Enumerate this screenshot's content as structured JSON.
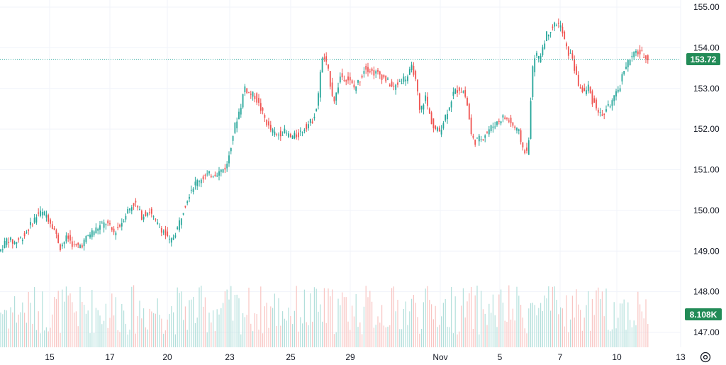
{
  "colors": {
    "up": "#26a69a",
    "down": "#ef5350",
    "up_volume": "#b2dfdb",
    "down_volume": "#f8c4c2",
    "grid": "#f0f3fa",
    "price_line": "#26a69a",
    "tag_bg": "#228b57"
  },
  "price_tag": "153.72",
  "volume_tag": "8.108K",
  "settings_icon": "gear-icon",
  "chart_data": {
    "type": "candlestick",
    "y_ticks": [
      "155.00",
      "154.00",
      "153.00",
      "152.00",
      "151.00",
      "150.00",
      "149.00",
      "148.00",
      "147.00"
    ],
    "ylim": [
      146.8,
      155.2
    ],
    "x_ticks": [
      "15",
      "17",
      "20",
      "23",
      "25",
      "29",
      "Nov",
      "5",
      "7",
      "10",
      "13"
    ],
    "last_price": 153.72,
    "last_volume": "8.108K",
    "grid": true,
    "price_path": [
      [
        0,
        149.0
      ],
      [
        10,
        149.3
      ],
      [
        20,
        149.2
      ],
      [
        35,
        149.4
      ],
      [
        45,
        149.7
      ],
      [
        55,
        149.95
      ],
      [
        65,
        149.9
      ],
      [
        75,
        149.6
      ],
      [
        85,
        149.1
      ],
      [
        95,
        149.35
      ],
      [
        105,
        149.1
      ],
      [
        115,
        149.15
      ],
      [
        125,
        149.4
      ],
      [
        140,
        149.6
      ],
      [
        150,
        149.7
      ],
      [
        160,
        149.45
      ],
      [
        170,
        149.65
      ],
      [
        180,
        150.0
      ],
      [
        190,
        150.2
      ],
      [
        200,
        149.85
      ],
      [
        210,
        150.0
      ],
      [
        220,
        149.7
      ],
      [
        230,
        149.5
      ],
      [
        240,
        149.2
      ],
      [
        250,
        149.55
      ],
      [
        260,
        150.1
      ],
      [
        270,
        150.55
      ],
      [
        280,
        150.75
      ],
      [
        290,
        150.85
      ],
      [
        300,
        150.9
      ],
      [
        310,
        150.95
      ],
      [
        320,
        151.1
      ],
      [
        330,
        152.0
      ],
      [
        340,
        152.6
      ],
      [
        345,
        153.05
      ],
      [
        350,
        152.9
      ],
      [
        360,
        152.8
      ],
      [
        370,
        152.4
      ],
      [
        380,
        152.0
      ],
      [
        390,
        151.85
      ],
      [
        400,
        151.95
      ],
      [
        410,
        151.8
      ],
      [
        420,
        151.85
      ],
      [
        430,
        152.05
      ],
      [
        440,
        152.2
      ],
      [
        448,
        152.6
      ],
      [
        452,
        153.5
      ],
      [
        456,
        153.8
      ],
      [
        462,
        153.5
      ],
      [
        468,
        152.9
      ],
      [
        472,
        152.7
      ],
      [
        480,
        153.3
      ],
      [
        490,
        153.25
      ],
      [
        500,
        153.0
      ],
      [
        510,
        153.3
      ],
      [
        515,
        153.55
      ],
      [
        525,
        153.4
      ],
      [
        535,
        153.35
      ],
      [
        545,
        153.2
      ],
      [
        555,
        153.0
      ],
      [
        565,
        153.2
      ],
      [
        575,
        153.3
      ],
      [
        582,
        153.55
      ],
      [
        588,
        153.0
      ],
      [
        592,
        152.4
      ],
      [
        600,
        152.8
      ],
      [
        605,
        152.4
      ],
      [
        612,
        152.0
      ],
      [
        620,
        151.95
      ],
      [
        630,
        152.4
      ],
      [
        640,
        152.9
      ],
      [
        648,
        153.0
      ],
      [
        655,
        152.9
      ],
      [
        660,
        152.5
      ],
      [
        665,
        151.8
      ],
      [
        670,
        151.7
      ],
      [
        680,
        151.8
      ],
      [
        690,
        152.0
      ],
      [
        700,
        152.15
      ],
      [
        710,
        152.3
      ],
      [
        718,
        152.2
      ],
      [
        725,
        152.05
      ],
      [
        732,
        151.9
      ],
      [
        738,
        151.5
      ],
      [
        745,
        151.4
      ],
      [
        750,
        153.3
      ],
      [
        755,
        153.9
      ],
      [
        760,
        153.7
      ],
      [
        765,
        154.0
      ],
      [
        770,
        154.3
      ],
      [
        778,
        154.5
      ],
      [
        785,
        154.6
      ],
      [
        790,
        154.55
      ],
      [
        795,
        154.25
      ],
      [
        800,
        153.9
      ],
      [
        808,
        153.75
      ],
      [
        812,
        153.3
      ],
      [
        818,
        153.0
      ],
      [
        825,
        152.9
      ],
      [
        830,
        153.05
      ],
      [
        835,
        152.7
      ],
      [
        840,
        152.6
      ],
      [
        845,
        152.4
      ],
      [
        850,
        152.3
      ],
      [
        855,
        152.5
      ],
      [
        860,
        152.6
      ],
      [
        868,
        152.8
      ],
      [
        875,
        153.1
      ],
      [
        880,
        153.5
      ],
      [
        890,
        153.75
      ],
      [
        898,
        153.9
      ],
      [
        905,
        153.85
      ],
      [
        910,
        153.8
      ],
      [
        915,
        153.72
      ]
    ]
  }
}
